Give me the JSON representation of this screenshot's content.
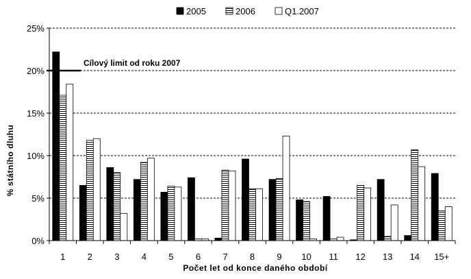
{
  "chart_data": {
    "type": "bar",
    "categories": [
      "1",
      "2",
      "3",
      "4",
      "5",
      "6",
      "7",
      "8",
      "9",
      "10",
      "11",
      "12",
      "13",
      "14",
      "15+"
    ],
    "series": [
      {
        "name": "2005",
        "fill": "#000000",
        "pattern": "solid",
        "values": [
          22.2,
          6.5,
          8.6,
          7.2,
          5.7,
          7.4,
          0.3,
          9.6,
          7.2,
          4.8,
          5.2,
          0.1,
          7.2,
          0.6,
          7.9
        ]
      },
      {
        "name": "2006",
        "fill": "#ffffff",
        "pattern": "horizontal-stripes",
        "values": [
          17.1,
          11.8,
          8.0,
          9.2,
          6.4,
          0.2,
          8.3,
          6.1,
          7.3,
          4.6,
          0.2,
          6.5,
          0.5,
          10.7,
          3.5
        ]
      },
      {
        "name": "Q1.2007",
        "fill": "#ffffff",
        "pattern": "none",
        "values": [
          18.4,
          12.0,
          3.2,
          9.7,
          6.3,
          0.2,
          8.2,
          6.1,
          12.3,
          0.2,
          0.4,
          6.2,
          4.2,
          8.7,
          4.0
        ]
      }
    ],
    "xlabel": "Počet let od konce daného období",
    "ylabel": "% státního dluhu",
    "ylim": [
      0,
      25
    ],
    "yticks": [
      0,
      5,
      10,
      15,
      20,
      25
    ],
    "ytick_suffix": "%",
    "grid": "horizontal-dashed",
    "legend_position": "top",
    "annotation": {
      "text": "Cílový limit od roku 2007",
      "y": 20
    }
  }
}
